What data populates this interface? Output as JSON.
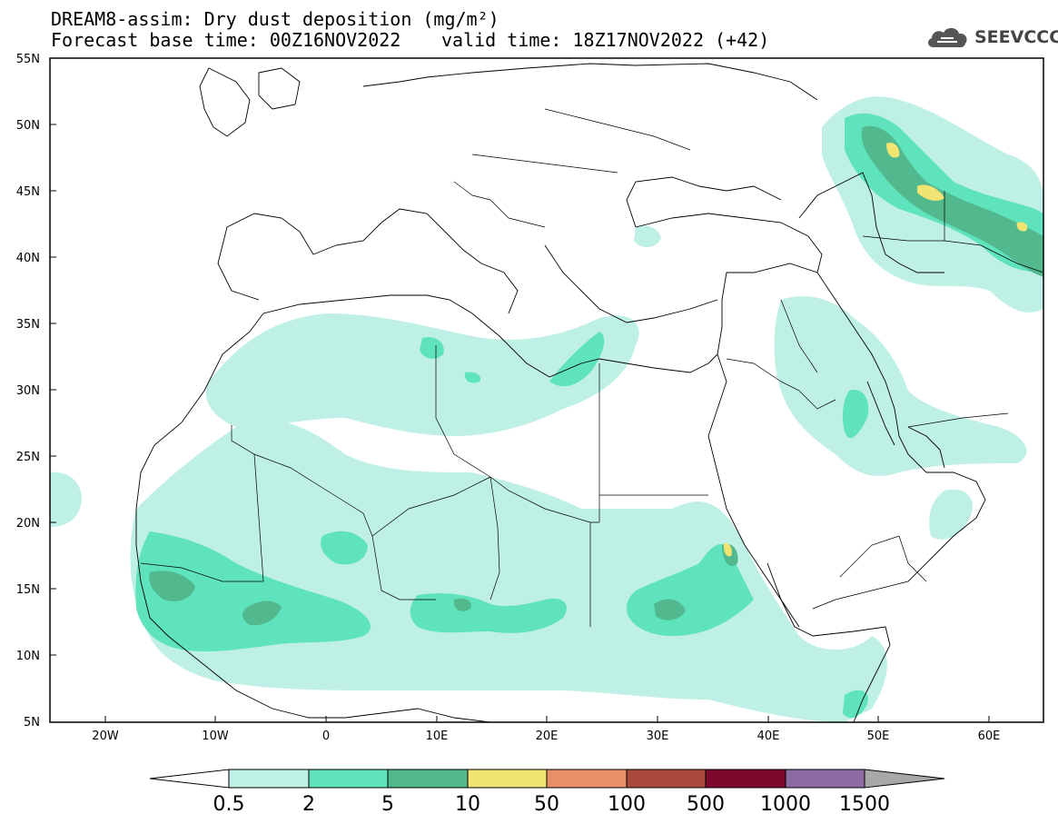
{
  "title": {
    "line1": "DREAM8-assim: Dry dust deposition (mg/m²)",
    "line2": "Forecast base time: 00Z16NOV2022",
    "valid": "valid time: 18Z17NOV2022 (+42)"
  },
  "logo": {
    "text": "SEEVCCC",
    "icon": "cloud-icon"
  },
  "map": {
    "lon_range": [
      -25,
      65
    ],
    "lat_range": [
      5,
      55
    ],
    "lat_ticks": [
      "55N",
      "50N",
      "45N",
      "40N",
      "35N",
      "30N",
      "25N",
      "20N",
      "15N",
      "10N",
      "5N"
    ],
    "lon_ticks": [
      "20W",
      "10W",
      "0",
      "10E",
      "20E",
      "30E",
      "40E",
      "50E",
      "60E"
    ]
  },
  "colorbar": {
    "labels": [
      "0.5",
      "2",
      "5",
      "10",
      "50",
      "100",
      "500",
      "1000",
      "1500"
    ],
    "colors": [
      "#ffffff",
      "#bff0e6",
      "#5fe3bd",
      "#52b88e",
      "#f2e472",
      "#e8906a",
      "#a9483c",
      "#7d0a2c",
      "#8c6aa2",
      "#a8a8a8"
    ]
  }
}
